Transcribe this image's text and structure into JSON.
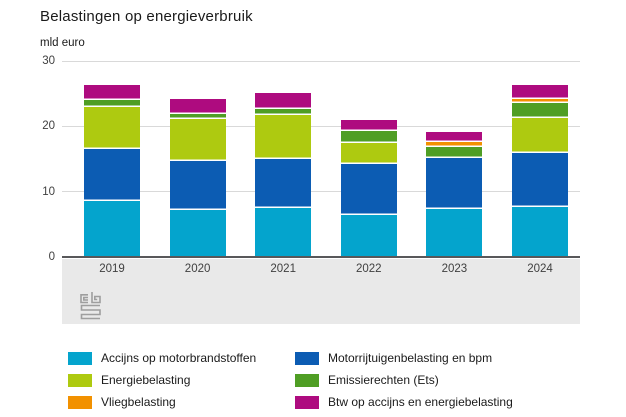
{
  "title": "Belastingen op energieverbruik",
  "unit_label": "mld euro",
  "footer": {
    "logo_icon": "cbs-logo"
  },
  "colors": {
    "grid": "#d9d9d9",
    "axis": "#58585a",
    "footer_band": "#e9e9e9",
    "accijns": "#04a4cd",
    "motorrijtuigen": "#0c5cb3",
    "energiebelasting": "#aeca10",
    "emissierechten": "#4f9e24",
    "vliegbelasting": "#f29100",
    "btw": "#ae0b7f"
  },
  "chart_data": {
    "type": "bar",
    "stacked": true,
    "title": "Belastingen op energieverbruik",
    "ylabel": "mld euro",
    "categories": [
      "2019",
      "2020",
      "2021",
      "2022",
      "2023",
      "2024"
    ],
    "series": [
      {
        "name": "Accijns op motorbrandstoffen",
        "color": "#04a4cd",
        "values": [
          8.6,
          7.2,
          7.5,
          6.5,
          7.4,
          7.7
        ]
      },
      {
        "name": "Motorrijtuigenbelasting en bpm",
        "color": "#0c5cb3",
        "values": [
          7.9,
          7.5,
          7.5,
          7.8,
          7.7,
          8.2
        ]
      },
      {
        "name": "Energiebelasting",
        "color": "#aeca10",
        "values": [
          6.5,
          6.4,
          6.7,
          3.2,
          0,
          5.4
        ]
      },
      {
        "name": "Emissierechten (Ets)",
        "color": "#4f9e24",
        "values": [
          1.0,
          0.8,
          1.0,
          1.8,
          1.7,
          2.2
        ]
      },
      {
        "name": "Vliegbelasting",
        "color": "#f29100",
        "values": [
          0,
          0,
          0,
          0,
          0.8,
          0.7
        ]
      },
      {
        "name": "Btw op accijns en energiebelasting",
        "color": "#ae0b7f",
        "values": [
          2.4,
          2.3,
          2.4,
          1.7,
          1.5,
          2.1
        ]
      }
    ],
    "totals": [
      26.4,
      24.2,
      25.1,
      21.0,
      19.1,
      26.3
    ],
    "ylim": [
      0,
      30
    ],
    "yticks": [
      0,
      10,
      20,
      30
    ],
    "grid": true,
    "legend_position": "bottom",
    "legend_columns": [
      [
        "Accijns op motorbrandstoffen",
        "Energiebelasting",
        "Vliegbelasting"
      ],
      [
        "Motorrijtuigenbelasting en bpm",
        "Emissierechten (Ets)",
        "Btw op accijns en energiebelasting"
      ]
    ]
  }
}
